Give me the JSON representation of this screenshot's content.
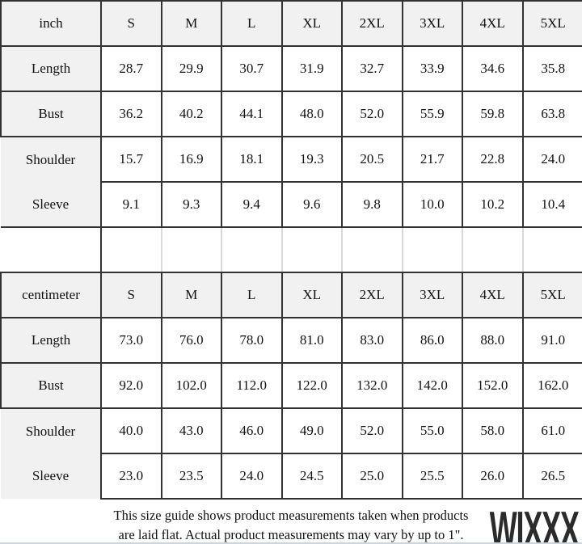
{
  "colors": {
    "border": "#333333",
    "header_bg": "#f1f1f1",
    "spacer_line": "#d9d9d9",
    "text": "#111111",
    "brand": "#2b2b2b",
    "bottom_edge": "#ccd6dd"
  },
  "sections": [
    {
      "unit_label": "inch",
      "sizes": [
        "S",
        "M",
        "L",
        "XL",
        "2XL",
        "3XL",
        "4XL",
        "5XL"
      ],
      "rows": [
        {
          "label": "Length",
          "values": [
            "28.7",
            "29.9",
            "30.7",
            "31.9",
            "32.7",
            "33.9",
            "34.6",
            "35.8"
          ]
        },
        {
          "label": "Bust",
          "values": [
            "36.2",
            "40.2",
            "44.1",
            "48.0",
            "52.0",
            "55.9",
            "59.8",
            "63.8"
          ]
        },
        {
          "label": "Shoulder",
          "values": [
            "15.7",
            "16.9",
            "18.1",
            "19.3",
            "20.5",
            "21.7",
            "22.8",
            "24.0"
          ]
        },
        {
          "label": "Sleeve",
          "values": [
            "9.1",
            "9.3",
            "9.4",
            "9.6",
            "9.8",
            "10.0",
            "10.2",
            "10.4"
          ]
        }
      ]
    },
    {
      "unit_label": "centimeter",
      "sizes": [
        "S",
        "M",
        "L",
        "XL",
        "2XL",
        "3XL",
        "4XL",
        "5XL"
      ],
      "rows": [
        {
          "label": "Length",
          "values": [
            "73.0",
            "76.0",
            "78.0",
            "81.0",
            "83.0",
            "86.0",
            "88.0",
            "91.0"
          ]
        },
        {
          "label": "Bust",
          "values": [
            "92.0",
            "102.0",
            "112.0",
            "122.0",
            "132.0",
            "142.0",
            "152.0",
            "162.0"
          ]
        },
        {
          "label": "Shoulder",
          "values": [
            "40.0",
            "43.0",
            "46.0",
            "49.0",
            "52.0",
            "55.0",
            "58.0",
            "61.0"
          ]
        },
        {
          "label": "Sleeve",
          "values": [
            "23.0",
            "23.5",
            "24.0",
            "24.5",
            "25.0",
            "25.5",
            "26.0",
            "26.5"
          ]
        }
      ]
    }
  ],
  "footer": {
    "note_line1": "This size guide shows product measurements taken when products",
    "note_line2": "are laid flat. Actual product measurements may vary by up to 1\".",
    "brand_logo": "WIXXX"
  }
}
